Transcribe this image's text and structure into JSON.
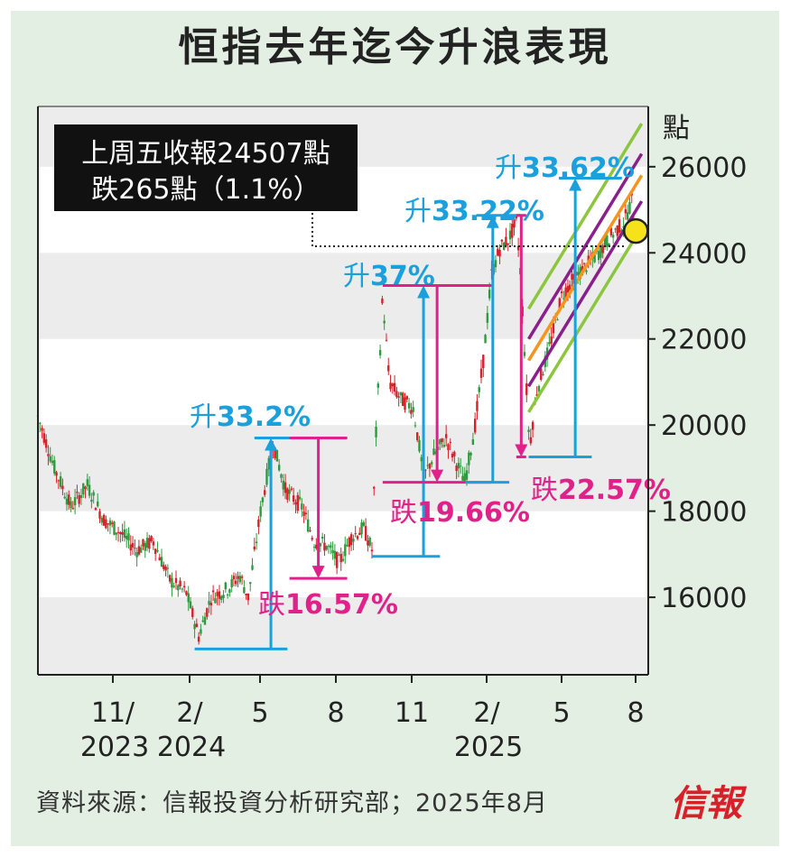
{
  "title": "恒指去年迄今升浪表現",
  "source": "資料來源：信報投資分析研究部；2025年8月",
  "logo": "信報",
  "colors": {
    "rise": "#1aa0dc",
    "fall": "#e0218a",
    "up_candle": "#2e9a3e",
    "down_candle": "#d6202a",
    "channel_green": "#8cc63f",
    "channel_purple": "#8a1f8c",
    "channel_orange": "#f7941d",
    "marker": "#f5e21a"
  },
  "chart_data": {
    "type": "candlestick",
    "unit_label": "點",
    "ylim": [
      14200,
      27400
    ],
    "y_ticks": [
      16000,
      18000,
      20000,
      22000,
      24000,
      26000
    ],
    "x_ticks": [
      {
        "line1": "11/",
        "line2": "2023"
      },
      {
        "line1": "2/",
        "line2": "2024"
      },
      {
        "line1": "5",
        "line2": ""
      },
      {
        "line1": "8",
        "line2": ""
      },
      {
        "line1": "11",
        "line2": ""
      },
      {
        "line1": "2/",
        "line2": "2025"
      },
      {
        "line1": "5",
        "line2": ""
      },
      {
        "line1": "8",
        "line2": ""
      }
    ],
    "path_points": [
      [
        0,
        20200
      ],
      [
        2,
        19000
      ],
      [
        4,
        18100
      ],
      [
        6,
        18600
      ],
      [
        8,
        17800
      ],
      [
        10,
        17500
      ],
      [
        12,
        17100
      ],
      [
        14,
        17300
      ],
      [
        16,
        16400
      ],
      [
        18,
        16100
      ],
      [
        19.5,
        15100
      ],
      [
        21,
        16000
      ],
      [
        23,
        16200
      ],
      [
        24.5,
        16500
      ],
      [
        25.5,
        16000
      ],
      [
        27,
        18000
      ],
      [
        28.5,
        19600
      ],
      [
        30,
        18500
      ],
      [
        32,
        18100
      ],
      [
        33.5,
        17300
      ],
      [
        35,
        17200
      ],
      [
        36.5,
        16800
      ],
      [
        38,
        17400
      ],
      [
        39.5,
        17600
      ],
      [
        40.5,
        17100
      ],
      [
        41,
        19800
      ],
      [
        41.8,
        23000
      ],
      [
        42.6,
        21000
      ],
      [
        44,
        20600
      ],
      [
        45.5,
        20400
      ],
      [
        46.8,
        18800
      ],
      [
        48,
        19300
      ],
      [
        49.5,
        19700
      ],
      [
        51,
        19000
      ],
      [
        51.8,
        18700
      ],
      [
        53,
        20000
      ],
      [
        54,
        21500
      ],
      [
        55,
        23500
      ],
      [
        56,
        24100
      ],
      [
        57,
        24300
      ],
      [
        58,
        24700
      ],
      [
        58.5,
        23600
      ],
      [
        59.2,
        21000
      ],
      [
        59.6,
        19500
      ],
      [
        60.5,
        20800
      ],
      [
        62,
        21800
      ],
      [
        63.5,
        23000
      ],
      [
        65,
        23400
      ],
      [
        66.5,
        23700
      ],
      [
        68,
        24000
      ],
      [
        69.5,
        24400
      ],
      [
        71,
        24700
      ],
      [
        72,
        25200
      ],
      [
        72.5,
        24500
      ]
    ],
    "callout": {
      "line1": "上周五收報24507點",
      "line2": "跌265點（1.1%）",
      "value": 24507
    },
    "annotations": [
      {
        "kind": "rise",
        "prefix": "升",
        "pct": "33.2%",
        "low": 14800,
        "high": 19700
      },
      {
        "kind": "fall",
        "prefix": "跌",
        "pct": "16.57%",
        "high": 19700,
        "low": 16440
      },
      {
        "kind": "rise",
        "prefix": "升",
        "pct": "37%",
        "low": 16950,
        "high": 23240
      },
      {
        "kind": "fall",
        "prefix": "跌",
        "pct": "19.66%",
        "high": 23240,
        "low": 18670
      },
      {
        "kind": "rise",
        "prefix": "升",
        "pct": "33.22%",
        "low": 18670,
        "high": 24870
      },
      {
        "kind": "fall",
        "prefix": "跌",
        "pct": "22.57%",
        "high": 24870,
        "low": 19260
      },
      {
        "kind": "rise",
        "prefix": "升",
        "pct": "33.62%",
        "low": 19260,
        "high": 25735
      }
    ]
  }
}
